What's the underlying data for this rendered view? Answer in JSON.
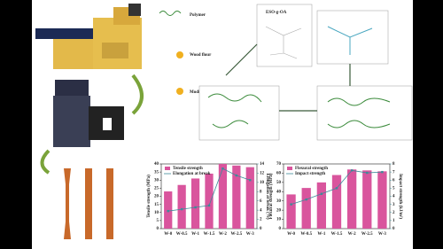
{
  "diagram": {
    "labels": [
      "Polymer",
      "Wood flour",
      "Modified wood flour",
      "ESO-g-OA"
    ]
  },
  "chart_data": [
    {
      "type": "bar",
      "categories": [
        "W-0",
        "W-0.5",
        "W-1",
        "W-1.5",
        "W-2",
        "W-2.5",
        "W-3"
      ],
      "y_label": "Tensile strength (MPa)",
      "y2_label": "Elongation at break (%)",
      "ylim": [
        0,
        40
      ],
      "yticks": [
        0,
        5,
        10,
        15,
        20,
        25,
        30,
        35,
        40
      ],
      "y2lim": [
        0,
        14
      ],
      "y2ticks": [
        0,
        2,
        4,
        6,
        8,
        10,
        12,
        14
      ],
      "series": [
        {
          "name": "Tensile strength",
          "color": "#d9559d",
          "values": [
            23,
            27,
            31,
            34,
            40,
            39,
            38
          ]
        },
        {
          "name": "Elongation at break",
          "color": "#3d8b99",
          "axis": "y2",
          "values": [
            3.8,
            4.2,
            4.6,
            5.0,
            13,
            11.5,
            10.5
          ]
        }
      ]
    },
    {
      "type": "bar",
      "categories": [
        "W-0",
        "W-0.5",
        "W-1",
        "W-1.5",
        "W-2",
        "W-2.5",
        "W-3"
      ],
      "y_label": "Flexural strength (MPa)",
      "y2_label": "Impact strength (kJ/m²)",
      "ylim": [
        0,
        70
      ],
      "yticks": [
        0,
        10,
        20,
        30,
        40,
        50,
        60,
        70
      ],
      "y2lim": [
        0,
        8
      ],
      "y2ticks": [
        0,
        1,
        2,
        3,
        4,
        5,
        6,
        7,
        8
      ],
      "series": [
        {
          "name": "Flexural strength",
          "color": "#d9559d",
          "values": [
            37,
            44,
            50,
            58,
            64,
            63,
            62
          ]
        },
        {
          "name": "Impact strength",
          "color": "#3d8b99",
          "axis": "y2",
          "values": [
            3.0,
            3.6,
            4.3,
            5.0,
            7.2,
            6.9,
            7.0
          ]
        }
      ]
    }
  ]
}
